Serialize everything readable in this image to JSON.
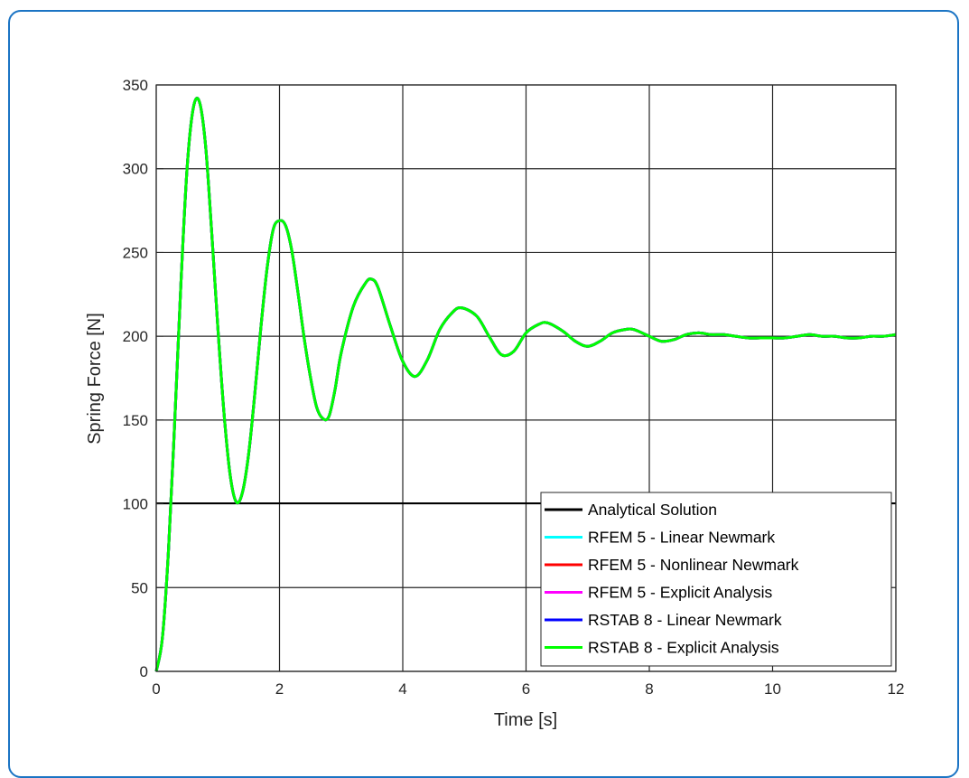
{
  "chart_data": {
    "type": "line",
    "title": "",
    "xlabel": "Time [s]",
    "ylabel": "Spring Force [N]",
    "xlim": [
      0,
      12
    ],
    "ylim": [
      0,
      350
    ],
    "xticks": [
      "0",
      "2",
      "4",
      "6",
      "8",
      "10",
      "12"
    ],
    "yticks": [
      "0",
      "50",
      "100",
      "150",
      "200",
      "250",
      "300",
      "350"
    ],
    "grid": true,
    "legend_position": "bottom-right",
    "series": [
      {
        "name": "Analytical Solution",
        "color": "#000000",
        "x": [
          0,
          0.1,
          0.2,
          0.3,
          0.4,
          0.5,
          0.6,
          0.7,
          0.8,
          0.9,
          1.0,
          1.1,
          1.2,
          1.3,
          1.4,
          1.5,
          1.6,
          1.7,
          1.8,
          1.9,
          2.0,
          2.1,
          2.2,
          2.3,
          2.4,
          2.5,
          2.6,
          2.7,
          2.8,
          2.9,
          3.0,
          3.2,
          3.4,
          3.5,
          3.6,
          3.8,
          4.0,
          4.2,
          4.4,
          4.6,
          4.8,
          4.95,
          5.2,
          5.4,
          5.6,
          5.8,
          6.0,
          6.2,
          6.35,
          6.6,
          6.8,
          7.0,
          7.2,
          7.4,
          7.6,
          7.75,
          8.0,
          8.2,
          8.4,
          8.6,
          8.8,
          9.0,
          9.2,
          9.4,
          9.6,
          9.8,
          10.0,
          10.2,
          10.4,
          10.6,
          10.8,
          11.0,
          11.2,
          11.4,
          11.6,
          11.8,
          12.0
        ],
        "values": [
          0,
          20,
          73,
          149,
          231,
          300,
          336,
          340,
          314,
          262,
          205,
          154,
          117,
          101,
          107,
          130,
          166,
          206,
          241,
          264,
          269,
          266,
          251,
          226,
          199,
          176,
          158,
          151,
          152,
          168,
          190,
          218,
          232,
          234,
          229,
          206,
          185,
          176,
          186,
          204,
          214,
          217,
          212,
          200,
          189,
          191,
          202,
          207,
          208,
          203,
          197,
          194,
          197,
          202,
          204,
          204,
          200,
          197,
          198,
          201,
          202,
          201,
          201,
          200,
          199,
          199,
          199,
          199,
          200,
          201,
          200,
          200,
          199,
          199,
          200,
          200,
          201
        ]
      },
      {
        "name": "RFEM 5 - Linear Newmark",
        "color": "#00ffff",
        "x": [
          0,
          0.1,
          0.2,
          0.3,
          0.4,
          0.5,
          0.6,
          0.7,
          0.8,
          0.9,
          1.0,
          1.1,
          1.2,
          1.3,
          1.4,
          1.5,
          1.6,
          1.7,
          1.8,
          1.9,
          2.0,
          2.1,
          2.2,
          2.3,
          2.4,
          2.5,
          2.6,
          2.7,
          2.8,
          2.9,
          3.0,
          3.2,
          3.4,
          3.5,
          3.6,
          3.8,
          4.0,
          4.2,
          4.4,
          4.6,
          4.8,
          4.95,
          5.2,
          5.4,
          5.6,
          5.8,
          6.0,
          6.2,
          6.35,
          6.6,
          6.8,
          7.0,
          7.2,
          7.4,
          7.6,
          7.75,
          8.0,
          8.2,
          8.4,
          8.6,
          8.8,
          9.0,
          9.2,
          9.4,
          9.6,
          9.8,
          10.0,
          10.2,
          10.4,
          10.6,
          10.8,
          11.0,
          11.2,
          11.4,
          11.6,
          11.8,
          12.0
        ],
        "values": [
          0,
          20,
          73,
          149,
          231,
          300,
          336,
          340,
          314,
          262,
          205,
          154,
          117,
          101,
          107,
          130,
          166,
          206,
          241,
          264,
          269,
          266,
          251,
          226,
          199,
          176,
          158,
          151,
          152,
          168,
          190,
          218,
          232,
          234,
          229,
          206,
          185,
          176,
          186,
          204,
          214,
          217,
          212,
          200,
          189,
          191,
          202,
          207,
          208,
          203,
          197,
          194,
          197,
          202,
          204,
          204,
          200,
          197,
          198,
          201,
          202,
          201,
          201,
          200,
          199,
          199,
          199,
          199,
          200,
          201,
          200,
          200,
          199,
          199,
          200,
          200,
          201
        ]
      },
      {
        "name": "RFEM 5 - Nonlinear Newmark",
        "color": "#ff0000",
        "x": [
          0,
          0.1,
          0.2,
          0.3,
          0.4,
          0.5,
          0.6,
          0.7,
          0.8,
          0.9,
          1.0,
          1.1,
          1.2,
          1.3,
          1.4,
          1.5,
          1.6,
          1.7,
          1.8,
          1.9,
          2.0,
          2.1,
          2.2,
          2.3,
          2.4,
          2.5,
          2.6,
          2.7,
          2.8,
          2.9,
          3.0,
          3.2,
          3.4,
          3.5,
          3.6,
          3.8,
          4.0,
          4.2,
          4.4,
          4.6,
          4.8,
          4.95,
          5.2,
          5.4,
          5.6,
          5.8,
          6.0,
          6.2,
          6.35,
          6.6,
          6.8,
          7.0,
          7.2,
          7.4,
          7.6,
          7.75,
          8.0,
          8.2,
          8.4,
          8.6,
          8.8,
          9.0,
          9.2,
          9.4,
          9.6,
          9.8,
          10.0,
          10.2,
          10.4,
          10.6,
          10.8,
          11.0,
          11.2,
          11.4,
          11.6,
          11.8,
          12.0
        ],
        "values": [
          0,
          20,
          73,
          149,
          231,
          300,
          336,
          340,
          314,
          262,
          205,
          154,
          117,
          101,
          107,
          130,
          166,
          206,
          241,
          264,
          269,
          266,
          251,
          226,
          199,
          176,
          158,
          151,
          152,
          168,
          190,
          218,
          232,
          234,
          229,
          206,
          185,
          176,
          186,
          204,
          214,
          217,
          212,
          200,
          189,
          191,
          202,
          207,
          208,
          203,
          197,
          194,
          197,
          202,
          204,
          204,
          200,
          197,
          198,
          201,
          202,
          201,
          201,
          200,
          199,
          199,
          199,
          199,
          200,
          201,
          200,
          200,
          199,
          199,
          200,
          200,
          201
        ]
      },
      {
        "name": "RFEM 5 - Explicit Analysis",
        "color": "#ff00ff",
        "x": [
          0,
          0.1,
          0.2,
          0.3,
          0.4,
          0.5,
          0.6,
          0.7,
          0.8,
          0.9,
          1.0,
          1.1,
          1.2,
          1.3,
          1.4,
          1.5,
          1.6,
          1.7,
          1.8,
          1.9,
          2.0,
          2.1,
          2.2,
          2.3,
          2.4,
          2.5,
          2.6,
          2.7,
          2.8,
          2.9,
          3.0,
          3.2,
          3.4,
          3.5,
          3.6,
          3.8,
          4.0,
          4.2,
          4.4,
          4.6,
          4.8,
          4.95,
          5.2,
          5.4,
          5.6,
          5.8,
          6.0,
          6.2,
          6.35,
          6.6,
          6.8,
          7.0,
          7.2,
          7.4,
          7.6,
          7.75,
          8.0,
          8.2,
          8.4,
          8.6,
          8.8,
          9.0,
          9.2,
          9.4,
          9.6,
          9.8,
          10.0,
          10.2,
          10.4,
          10.6,
          10.8,
          11.0,
          11.2,
          11.4,
          11.6,
          11.8,
          12.0
        ],
        "values": [
          0,
          20,
          73,
          149,
          231,
          300,
          336,
          340,
          314,
          262,
          205,
          154,
          117,
          101,
          107,
          130,
          166,
          206,
          241,
          264,
          269,
          266,
          251,
          226,
          199,
          176,
          158,
          151,
          152,
          168,
          190,
          218,
          232,
          234,
          229,
          206,
          185,
          176,
          186,
          204,
          214,
          217,
          212,
          200,
          189,
          191,
          202,
          207,
          208,
          203,
          197,
          194,
          197,
          202,
          204,
          204,
          200,
          197,
          198,
          201,
          202,
          201,
          201,
          200,
          199,
          199,
          199,
          199,
          200,
          201,
          200,
          200,
          199,
          199,
          200,
          200,
          201
        ]
      },
      {
        "name": "RSTAB 8 - Linear Newmark",
        "color": "#0000ff",
        "x": [
          0,
          0.1,
          0.2,
          0.3,
          0.4,
          0.5,
          0.6,
          0.7,
          0.8,
          0.9,
          1.0,
          1.1,
          1.2,
          1.3,
          1.4,
          1.5,
          1.6,
          1.7,
          1.8,
          1.9,
          2.0,
          2.1,
          2.2,
          2.3,
          2.4,
          2.5,
          2.6,
          2.7,
          2.8,
          2.9,
          3.0,
          3.2,
          3.4,
          3.5,
          3.6,
          3.8,
          4.0,
          4.2,
          4.4,
          4.6,
          4.8,
          4.95,
          5.2,
          5.4,
          5.6,
          5.8,
          6.0,
          6.2,
          6.35,
          6.6,
          6.8,
          7.0,
          7.2,
          7.4,
          7.6,
          7.75,
          8.0,
          8.2,
          8.4,
          8.6,
          8.8,
          9.0,
          9.2,
          9.4,
          9.6,
          9.8,
          10.0,
          10.2,
          10.4,
          10.6,
          10.8,
          11.0,
          11.2,
          11.4,
          11.6,
          11.8,
          12.0
        ],
        "values": [
          0,
          20,
          73,
          149,
          231,
          300,
          336,
          340,
          314,
          262,
          205,
          154,
          117,
          101,
          107,
          130,
          166,
          206,
          241,
          264,
          269,
          266,
          251,
          226,
          199,
          176,
          158,
          151,
          152,
          168,
          190,
          218,
          232,
          234,
          229,
          206,
          185,
          176,
          186,
          204,
          214,
          217,
          212,
          200,
          189,
          191,
          202,
          207,
          208,
          203,
          197,
          194,
          197,
          202,
          204,
          204,
          200,
          197,
          198,
          201,
          202,
          201,
          201,
          200,
          199,
          199,
          199,
          199,
          200,
          201,
          200,
          200,
          199,
          199,
          200,
          200,
          201
        ]
      },
      {
        "name": "RSTAB 8 - Explicit Analysis",
        "color": "#00ff00",
        "x": [
          0,
          0.1,
          0.2,
          0.3,
          0.4,
          0.5,
          0.6,
          0.7,
          0.8,
          0.9,
          1.0,
          1.1,
          1.2,
          1.3,
          1.4,
          1.5,
          1.6,
          1.7,
          1.8,
          1.9,
          2.0,
          2.1,
          2.2,
          2.3,
          2.4,
          2.5,
          2.6,
          2.7,
          2.8,
          2.9,
          3.0,
          3.2,
          3.4,
          3.5,
          3.6,
          3.8,
          4.0,
          4.2,
          4.4,
          4.6,
          4.8,
          4.95,
          5.2,
          5.4,
          5.6,
          5.8,
          6.0,
          6.2,
          6.35,
          6.6,
          6.8,
          7.0,
          7.2,
          7.4,
          7.6,
          7.75,
          8.0,
          8.2,
          8.4,
          8.6,
          8.8,
          9.0,
          9.2,
          9.4,
          9.6,
          9.8,
          10.0,
          10.2,
          10.4,
          10.6,
          10.8,
          11.0,
          11.2,
          11.4,
          11.6,
          11.8,
          12.0
        ],
        "values": [
          0,
          20,
          73,
          149,
          231,
          300,
          336,
          340,
          314,
          262,
          205,
          154,
          117,
          101,
          107,
          130,
          166,
          206,
          241,
          264,
          269,
          266,
          251,
          226,
          199,
          176,
          158,
          151,
          152,
          168,
          190,
          218,
          232,
          234,
          229,
          206,
          185,
          176,
          186,
          204,
          214,
          217,
          212,
          200,
          189,
          191,
          202,
          207,
          208,
          203,
          197,
          194,
          197,
          202,
          204,
          204,
          200,
          197,
          198,
          201,
          202,
          201,
          201,
          200,
          199,
          199,
          199,
          199,
          200,
          201,
          200,
          200,
          199,
          199,
          200,
          200,
          201
        ]
      }
    ]
  },
  "colors": {
    "frame_border": "#1b74c4",
    "grid": "#262626",
    "reference_line": "#000000"
  }
}
